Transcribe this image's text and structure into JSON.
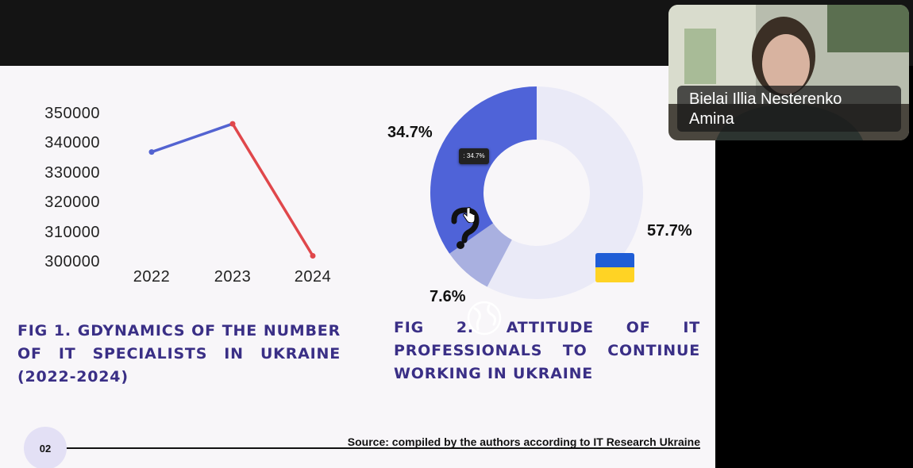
{
  "colors": {
    "line_rise": "#5363d1",
    "line_fall": "#e0474b",
    "donut_main": "#eaeaf7",
    "donut_blue": "#4f63d8",
    "donut_gray": "#a9b0e0",
    "caption": "#3a2f86"
  },
  "slide": {
    "fig1_caption": "FIG 1. GDYNAMICS OF THE NUMBER OF IT SPECIALISTS IN UKRAINE (2022-2024)",
    "fig2_caption": "FIG 2. ATTITUDE OF IT PROFESSIONALS TO CONTINUE WORKING IN UKRAINE",
    "source": "Source: compiled by the authors according to IT Research Ukraine",
    "page_number": "02"
  },
  "chart_data": [
    {
      "type": "line",
      "title": "",
      "x": [
        "2022",
        "2023",
        "2024"
      ],
      "series": [
        {
          "values": [
            337000,
            346500,
            302000
          ]
        }
      ],
      "ylim": [
        300000,
        350000
      ],
      "yticks": [
        "350000",
        "340000",
        "330000",
        "320000",
        "310000",
        "300000"
      ],
      "grid": false
    },
    {
      "type": "pie",
      "labels": [
        "57.7%",
        "34.7%",
        "7.6%"
      ],
      "values": [
        57.7,
        34.7,
        7.6
      ],
      "icons": [
        "ukraine-flag-icon",
        "question-mark-icon",
        "globe-icon"
      ],
      "tooltip": ": 34.7%"
    }
  ],
  "video": {
    "participant_name": "Bielai Illia Nesterenko Amina"
  },
  "icons": {
    "cursor": "hand-pointer-icon"
  }
}
